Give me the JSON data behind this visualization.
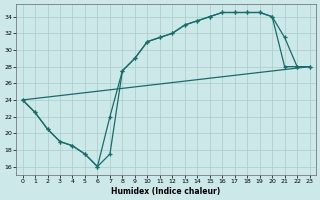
{
  "xlabel": "Humidex (Indice chaleur)",
  "bg_color": "#cce8e8",
  "grid_color": "#aacccc",
  "line_color": "#1a6b6b",
  "xlim": [
    -0.5,
    23.5
  ],
  "ylim": [
    15,
    35.5
  ],
  "xticks": [
    0,
    1,
    2,
    3,
    4,
    5,
    6,
    7,
    8,
    9,
    10,
    11,
    12,
    13,
    14,
    15,
    16,
    17,
    18,
    19,
    20,
    21,
    22,
    23
  ],
  "yticks": [
    16,
    18,
    20,
    22,
    24,
    26,
    28,
    30,
    32,
    34
  ],
  "line1_x": [
    0,
    1,
    2,
    3,
    4,
    5,
    6,
    7,
    8,
    9,
    10,
    11,
    12,
    13,
    14,
    15,
    16,
    17,
    18,
    19,
    20,
    21,
    22,
    23
  ],
  "line1_y": [
    24,
    22.5,
    20.5,
    19.0,
    18.5,
    17.5,
    16.0,
    17.5,
    27.5,
    29.0,
    31.0,
    31.5,
    32.0,
    33.0,
    33.5,
    34.0,
    34.5,
    34.5,
    34.5,
    34.5,
    34.0,
    28.0,
    28.0,
    28.0
  ],
  "line2_x": [
    0,
    1,
    2,
    3,
    4,
    5,
    6,
    7,
    8,
    9,
    10,
    11,
    12,
    13,
    14,
    15,
    16,
    17,
    18,
    19,
    20,
    21,
    22,
    23
  ],
  "line2_y": [
    24,
    22.5,
    20.5,
    19.0,
    18.5,
    17.5,
    16.0,
    22.0,
    27.5,
    29.0,
    31.0,
    31.5,
    32.0,
    33.0,
    33.5,
    34.0,
    34.5,
    34.5,
    34.5,
    34.5,
    34.0,
    31.5,
    28.0,
    28.0
  ],
  "line3_x": [
    0,
    23
  ],
  "line3_y": [
    24,
    28
  ]
}
